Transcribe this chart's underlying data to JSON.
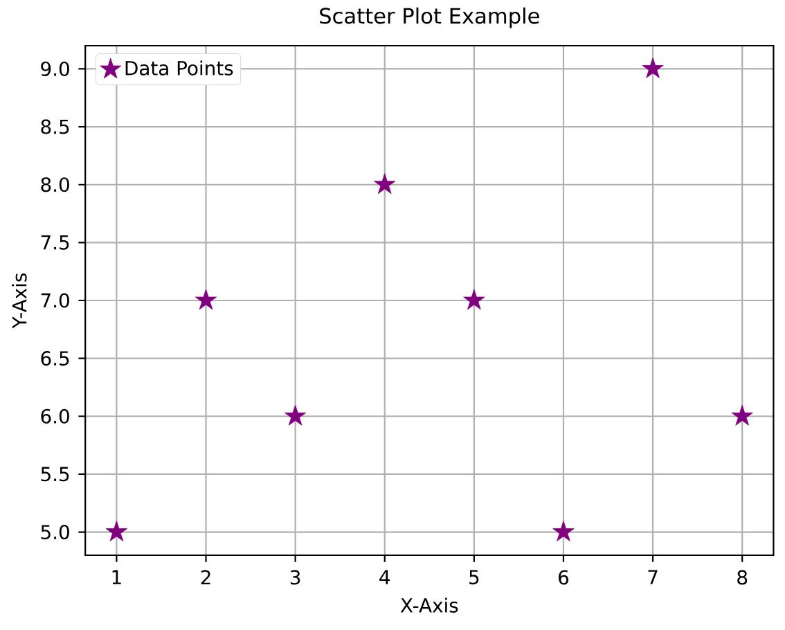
{
  "chart_data": {
    "type": "scatter",
    "title": "Scatter Plot Example",
    "xlabel": "X-Axis",
    "ylabel": "Y-Axis",
    "x": [
      1,
      2,
      3,
      4,
      5,
      6,
      7,
      8
    ],
    "series": [
      {
        "name": "Data Points",
        "color": "#800080",
        "values": [
          5,
          7,
          6,
          8,
          7,
          5,
          9,
          6
        ]
      }
    ],
    "xlim": [
      0.65,
      8.35
    ],
    "ylim": [
      4.8,
      9.2
    ],
    "xticks": [
      1,
      2,
      3,
      4,
      5,
      6,
      7,
      8
    ],
    "yticks": [
      {
        "value": 5,
        "label": "5.0"
      },
      5.5,
      {
        "value": 6,
        "label": "6.0"
      },
      6.5,
      {
        "value": 7,
        "label": "7.0"
      },
      7.5,
      {
        "value": 8,
        "label": "8.0"
      },
      8.5,
      {
        "value": 9,
        "label": "9.0"
      }
    ],
    "grid": true,
    "legend": "top left",
    "marker": "star"
  }
}
